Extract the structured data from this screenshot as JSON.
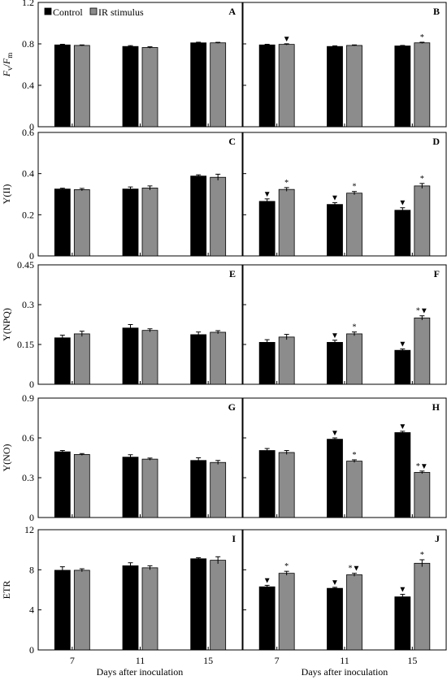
{
  "legend": {
    "control": "Control",
    "ir": "IR stimulus"
  },
  "colors": {
    "control": "#000000",
    "ir": "#8c8c8c"
  },
  "x_title": "Days after inoculation",
  "chart_data": [
    {
      "type": "bar",
      "panel": "A",
      "ylabel": "Fv/Fm",
      "ylim": [
        0,
        1.2
      ],
      "yticks": [
        "0",
        "0.4",
        "0.8",
        "1.2"
      ],
      "yticks_values": [
        0,
        0.4,
        0.8,
        1.2
      ],
      "categories": [
        "7",
        "11",
        "15"
      ],
      "series": [
        {
          "name": "Control",
          "values": [
            0.79,
            0.775,
            0.81
          ],
          "errors": [
            0.006,
            0.008,
            0.006
          ],
          "marks": [
            "",
            "",
            ""
          ]
        },
        {
          "name": "IR stimulus",
          "values": [
            0.785,
            0.765,
            0.81
          ],
          "errors": [
            0.005,
            0.007,
            0.005
          ],
          "marks": [
            "",
            "",
            ""
          ]
        }
      ]
    },
    {
      "type": "bar",
      "panel": "B",
      "ylabel": "",
      "ylim": [
        0,
        1.2
      ],
      "yticks": [
        "0",
        "0.4",
        "0.8",
        "1.2"
      ],
      "yticks_values": [
        0,
        0.4,
        0.8,
        1.2
      ],
      "categories": [
        "7",
        "11",
        "15"
      ],
      "series": [
        {
          "name": "Control",
          "values": [
            0.79,
            0.775,
            0.78
          ],
          "errors": [
            0.006,
            0.006,
            0.005
          ],
          "marks": [
            "",
            "",
            ""
          ]
        },
        {
          "name": "IR stimulus",
          "values": [
            0.795,
            0.785,
            0.81
          ],
          "errors": [
            0.006,
            0.005,
            0.006
          ],
          "marks": [
            "▼",
            "",
            "*"
          ]
        }
      ]
    },
    {
      "type": "bar",
      "panel": "C",
      "ylabel": "Y(II)",
      "ylim": [
        0,
        0.6
      ],
      "yticks": [
        "0",
        "0.2",
        "0.4",
        "0.6"
      ],
      "yticks_values": [
        0,
        0.2,
        0.4,
        0.6
      ],
      "categories": [
        "7",
        "11",
        "15"
      ],
      "series": [
        {
          "name": "Control",
          "values": [
            0.325,
            0.325,
            0.388
          ],
          "errors": [
            0.004,
            0.01,
            0.006
          ],
          "marks": [
            "",
            "",
            ""
          ]
        },
        {
          "name": "IR stimulus",
          "values": [
            0.322,
            0.33,
            0.382
          ],
          "errors": [
            0.006,
            0.01,
            0.015
          ],
          "marks": [
            "",
            "",
            ""
          ]
        }
      ]
    },
    {
      "type": "bar",
      "panel": "D",
      "ylabel": "",
      "ylim": [
        0,
        0.6
      ],
      "yticks": [
        "0",
        "0.2",
        "0.4",
        "0.6"
      ],
      "yticks_values": [
        0,
        0.2,
        0.4,
        0.6
      ],
      "categories": [
        "7",
        "11",
        "15"
      ],
      "series": [
        {
          "name": "Control",
          "values": [
            0.265,
            0.25,
            0.222
          ],
          "errors": [
            0.012,
            0.009,
            0.012
          ],
          "marks": [
            "▼",
            "▼",
            "▼"
          ]
        },
        {
          "name": "IR stimulus",
          "values": [
            0.323,
            0.305,
            0.34
          ],
          "errors": [
            0.009,
            0.008,
            0.012
          ],
          "marks": [
            "*",
            "*",
            "*"
          ]
        }
      ]
    },
    {
      "type": "bar",
      "panel": "E",
      "ylabel": "Y(NPQ)",
      "ylim": [
        0,
        0.45
      ],
      "yticks": [
        "0",
        "0.15",
        "0.3",
        "0.45"
      ],
      "yticks_values": [
        0,
        0.15,
        0.3,
        0.45
      ],
      "categories": [
        "7",
        "11",
        "15"
      ],
      "series": [
        {
          "name": "Control",
          "values": [
            0.175,
            0.212,
            0.187
          ],
          "errors": [
            0.01,
            0.013,
            0.01
          ],
          "marks": [
            "",
            "",
            ""
          ]
        },
        {
          "name": "IR stimulus",
          "values": [
            0.19,
            0.203,
            0.196
          ],
          "errors": [
            0.01,
            0.006,
            0.006
          ],
          "marks": [
            "",
            "",
            ""
          ]
        }
      ]
    },
    {
      "type": "bar",
      "panel": "F",
      "ylabel": "",
      "ylim": [
        0,
        0.45
      ],
      "yticks": [
        "0",
        "0.15",
        "0.3",
        "0.45"
      ],
      "yticks_values": [
        0,
        0.15,
        0.3,
        0.45
      ],
      "categories": [
        "7",
        "11",
        "15"
      ],
      "series": [
        {
          "name": "Control",
          "values": [
            0.158,
            0.158,
            0.128
          ],
          "errors": [
            0.01,
            0.008,
            0.005
          ],
          "marks": [
            "",
            "▼",
            "▼"
          ]
        },
        {
          "name": "IR stimulus",
          "values": [
            0.178,
            0.19,
            0.25
          ],
          "errors": [
            0.01,
            0.007,
            0.008
          ],
          "marks": [
            "",
            "*",
            "*▼"
          ]
        }
      ]
    },
    {
      "type": "bar",
      "panel": "G",
      "ylabel": "Y(NO)",
      "ylim": [
        0,
        0.9
      ],
      "yticks": [
        "0",
        "0.3",
        "0.6",
        "0.9"
      ],
      "yticks_values": [
        0,
        0.3,
        0.6,
        0.9
      ],
      "categories": [
        "7",
        "11",
        "15"
      ],
      "series": [
        {
          "name": "Control",
          "values": [
            0.495,
            0.455,
            0.43
          ],
          "errors": [
            0.01,
            0.018,
            0.02
          ],
          "marks": [
            "",
            "",
            ""
          ]
        },
        {
          "name": "IR stimulus",
          "values": [
            0.475,
            0.44,
            0.415
          ],
          "errors": [
            0.007,
            0.008,
            0.015
          ],
          "marks": [
            "",
            "",
            ""
          ]
        }
      ]
    },
    {
      "type": "bar",
      "panel": "H",
      "ylabel": "",
      "ylim": [
        0,
        0.9
      ],
      "yticks": [
        "0",
        "0.3",
        "0.6",
        "0.9"
      ],
      "yticks_values": [
        0,
        0.3,
        0.6,
        0.9
      ],
      "categories": [
        "7",
        "11",
        "15"
      ],
      "series": [
        {
          "name": "Control",
          "values": [
            0.505,
            0.59,
            0.64
          ],
          "errors": [
            0.015,
            0.01,
            0.01
          ],
          "marks": [
            "",
            "▼",
            "▼"
          ]
        },
        {
          "name": "IR stimulus",
          "values": [
            0.49,
            0.425,
            0.34
          ],
          "errors": [
            0.015,
            0.01,
            0.01
          ],
          "marks": [
            "",
            "*",
            "*▼"
          ]
        }
      ]
    },
    {
      "type": "bar",
      "panel": "I",
      "ylabel": "ETR",
      "ylim": [
        0,
        12
      ],
      "yticks": [
        "0",
        "4",
        "8",
        "12"
      ],
      "yticks_values": [
        0,
        4,
        8,
        12
      ],
      "categories": [
        "7",
        "11",
        "15"
      ],
      "series": [
        {
          "name": "Control",
          "values": [
            7.95,
            8.4,
            9.1
          ],
          "errors": [
            0.35,
            0.3,
            0.1
          ],
          "marks": [
            "",
            "",
            ""
          ]
        },
        {
          "name": "IR stimulus",
          "values": [
            7.95,
            8.2,
            8.95
          ],
          "errors": [
            0.15,
            0.2,
            0.35
          ],
          "marks": [
            "",
            "",
            ""
          ]
        }
      ]
    },
    {
      "type": "bar",
      "panel": "J",
      "ylabel": "",
      "ylim": [
        0,
        12
      ],
      "yticks": [
        "0",
        "4",
        "8",
        "12"
      ],
      "yticks_values": [
        0,
        4,
        8,
        12
      ],
      "categories": [
        "7",
        "11",
        "15"
      ],
      "series": [
        {
          "name": "Control",
          "values": [
            6.3,
            6.15,
            5.3
          ],
          "errors": [
            0.15,
            0.1,
            0.25
          ],
          "marks": [
            "▼",
            "▼",
            "▼"
          ]
        },
        {
          "name": "IR stimulus",
          "values": [
            7.65,
            7.5,
            8.65
          ],
          "errors": [
            0.2,
            0.15,
            0.35
          ],
          "marks": [
            "*",
            "*▼",
            "*"
          ]
        }
      ]
    }
  ]
}
